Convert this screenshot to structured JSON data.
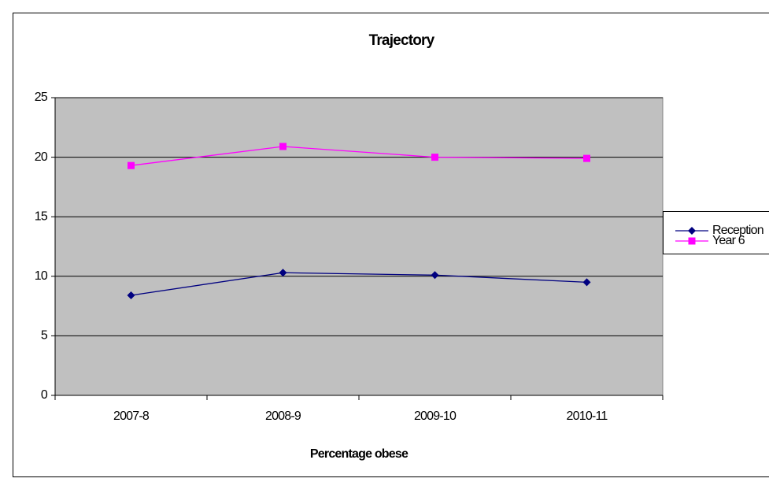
{
  "chart_data": {
    "type": "line",
    "title": "Trajectory",
    "x_label": "Percentage obese",
    "categories": [
      "2007-8",
      "2008-9",
      "2009-10",
      "2010-11"
    ],
    "series": [
      {
        "name": "Reception",
        "color": "#000080",
        "marker": "diamond",
        "values": [
          8.4,
          10.3,
          10.1,
          9.5
        ]
      },
      {
        "name": "Year 6",
        "color": "#ff00ff",
        "marker": "square",
        "values": [
          19.3,
          20.9,
          20.0,
          19.9
        ]
      }
    ],
    "ylim": [
      0,
      25
    ],
    "yticks": [
      0,
      5,
      10,
      15,
      20,
      25
    ],
    "grid": true,
    "legend": "right"
  }
}
